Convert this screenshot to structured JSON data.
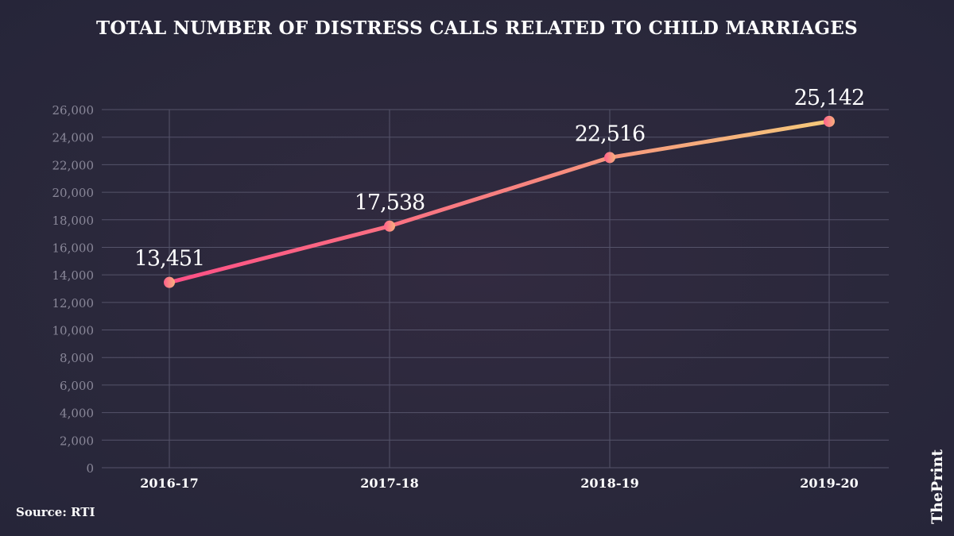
{
  "title": "TOTAL NUMBER OF DISTRESS CALLS RELATED TO CHILD MARRIAGES",
  "source": "Source: RTI",
  "logo": "ThePrint",
  "chart_data": {
    "type": "line",
    "title": "TOTAL NUMBER OF DISTRESS CALLS RELATED TO CHILD MARRIAGES",
    "categories": [
      "2016-17",
      "2017-18",
      "2018-19",
      "2019-20"
    ],
    "values": [
      13451,
      17538,
      22516,
      25142
    ],
    "data_labels": [
      "13,451",
      "17,538",
      "22,516",
      "25,142"
    ],
    "ylim": [
      0,
      26000
    ],
    "yticks": [
      "0",
      "2,000",
      "4,000",
      "6,000",
      "8,000",
      "10,000",
      "12,000",
      "14,000",
      "16,000",
      "18,000",
      "20,000",
      "22,000",
      "24,000",
      "26,000"
    ],
    "grid": true,
    "xlabel": "",
    "ylabel": "",
    "colors": {
      "start": "#ff4f86",
      "end": "#f5c97a",
      "grid": "#55536a",
      "tick": "#8a8899"
    }
  }
}
